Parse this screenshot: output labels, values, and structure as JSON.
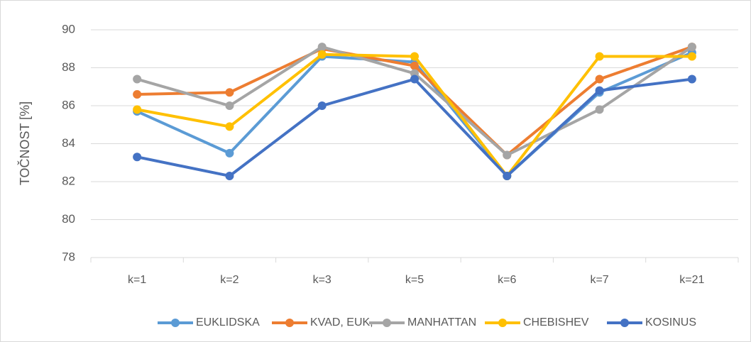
{
  "chart_data": {
    "type": "line",
    "y_label": "TOČNOST [%]",
    "categories": [
      "k=1",
      "k=2",
      "k=3",
      "k=5",
      "k=6",
      "k=7",
      "k=21"
    ],
    "series": [
      {
        "name": "EUKLIDSKA",
        "color": "#5b9bd5",
        "values": [
          85.7,
          83.5,
          88.6,
          88.3,
          82.3,
          86.7,
          88.8
        ]
      },
      {
        "name": "KVAD, EUK,",
        "color": "#ed7d31",
        "values": [
          86.6,
          86.7,
          89.0,
          88.1,
          83.4,
          87.4,
          89.1
        ]
      },
      {
        "name": "MANHATTAN",
        "color": "#a5a5a5",
        "values": [
          87.4,
          86.0,
          89.1,
          87.7,
          83.4,
          85.8,
          89.1
        ]
      },
      {
        "name": "CHEBISHEV",
        "color": "#ffc000",
        "values": [
          85.8,
          84.9,
          88.7,
          88.6,
          82.3,
          88.6,
          88.6
        ]
      },
      {
        "name": "KOSINUS",
        "color": "#4472c4",
        "values": [
          83.3,
          82.3,
          86.0,
          87.4,
          82.3,
          86.8,
          87.4
        ]
      }
    ],
    "ylim": [
      78,
      90
    ],
    "yticks": [
      78,
      80,
      82,
      84,
      86,
      88,
      90
    ],
    "grid": true,
    "legend": "bottom"
  }
}
